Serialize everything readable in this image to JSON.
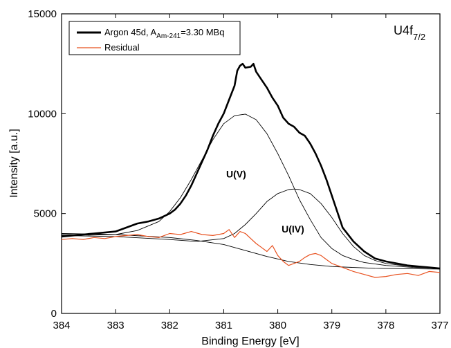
{
  "chart_data": {
    "type": "line",
    "title": "",
    "xlabel": "Binding Energy [eV]",
    "ylabel": "Intensity [a.u.]",
    "xlim": [
      384,
      377
    ],
    "x_reversed": true,
    "ylim": [
      0,
      15000
    ],
    "xticks": [
      "384",
      "383",
      "382",
      "381",
      "380",
      "379",
      "378",
      "377"
    ],
    "xtick_values": [
      384,
      383,
      382,
      381,
      380,
      379,
      378,
      377
    ],
    "yticks": [
      "0",
      "5000",
      "10000",
      "15000"
    ],
    "ytick_values": [
      0,
      5000,
      10000,
      15000
    ],
    "grid": false,
    "legend_placement": "top-left",
    "corner_label": {
      "main": "U4f",
      "sub": "7/2"
    },
    "legend": [
      {
        "key": "measured",
        "text_prefix": "Argon 45d, A",
        "text_sub": "Am-241",
        "text_suffix": "=3.30 MBq",
        "color": "#000000"
      },
      {
        "key": "residual",
        "text": "Residual",
        "color": "#e8501e"
      }
    ],
    "annotations": [
      {
        "text": "U(V)",
        "x": 380.77,
        "y": 6800
      },
      {
        "text": "U(IV)",
        "x": 379.72,
        "y": 4050
      }
    ],
    "series": [
      {
        "key": "measured",
        "style": "thick",
        "color": "#000000",
        "x": [
          384.0,
          383.8,
          383.6,
          383.4,
          383.2,
          383.0,
          382.8,
          382.6,
          382.4,
          382.2,
          382.0,
          381.9,
          381.8,
          381.7,
          381.6,
          381.5,
          381.4,
          381.3,
          381.2,
          381.1,
          381.0,
          380.9,
          380.8,
          380.75,
          380.7,
          380.65,
          380.6,
          380.5,
          380.45,
          380.4,
          380.3,
          380.2,
          380.1,
          380.0,
          379.9,
          379.8,
          379.7,
          379.6,
          379.5,
          379.4,
          379.3,
          379.2,
          379.1,
          379.0,
          378.9,
          378.8,
          378.6,
          378.4,
          378.2,
          378.0,
          377.8,
          377.6,
          377.4,
          377.2,
          377.0
        ],
        "y": [
          3850,
          3900,
          3950,
          4000,
          4050,
          4100,
          4300,
          4500,
          4600,
          4750,
          5000,
          5200,
          5500,
          5900,
          6400,
          7000,
          7600,
          8200,
          8900,
          9500,
          10000,
          10700,
          11400,
          12150,
          12400,
          12500,
          12300,
          12350,
          12500,
          12100,
          11700,
          11300,
          10800,
          10400,
          9800,
          9500,
          9350,
          9050,
          8900,
          8500,
          8000,
          7400,
          6700,
          5900,
          5100,
          4300,
          3600,
          3100,
          2750,
          2600,
          2500,
          2400,
          2350,
          2300,
          2250
        ]
      },
      {
        "key": "residual",
        "style": "thin",
        "color": "#e8501e",
        "x": [
          384.0,
          383.8,
          383.6,
          383.4,
          383.2,
          383.0,
          382.8,
          382.6,
          382.4,
          382.2,
          382.0,
          381.8,
          381.6,
          381.4,
          381.2,
          381.0,
          380.9,
          380.8,
          380.7,
          380.6,
          380.5,
          380.4,
          380.3,
          380.2,
          380.1,
          380.0,
          379.9,
          379.8,
          379.7,
          379.6,
          379.5,
          379.4,
          379.3,
          379.2,
          379.1,
          379.0,
          378.8,
          378.6,
          378.4,
          378.2,
          378.0,
          377.8,
          377.6,
          377.4,
          377.2,
          377.0
        ],
        "y": [
          3700,
          3750,
          3700,
          3800,
          3750,
          3850,
          3900,
          3950,
          3850,
          3800,
          4000,
          3950,
          4100,
          3950,
          3900,
          4000,
          4200,
          3800,
          4100,
          4000,
          3750,
          3500,
          3300,
          3100,
          3400,
          2900,
          2600,
          2400,
          2500,
          2600,
          2800,
          2950,
          3000,
          2900,
          2700,
          2500,
          2300,
          2100,
          1950,
          1800,
          1850,
          1950,
          2000,
          1900,
          2100,
          2050
        ]
      },
      {
        "key": "fit-u-v",
        "style": "fine",
        "color": "#000000",
        "x": [
          384.0,
          383.5,
          383.0,
          382.6,
          382.2,
          382.0,
          381.8,
          381.6,
          381.4,
          381.2,
          381.0,
          380.8,
          380.6,
          380.4,
          380.2,
          380.0,
          379.8,
          379.6,
          379.4,
          379.2,
          379.0,
          378.8,
          378.6,
          378.4,
          378.0,
          377.5,
          377.0
        ],
        "y": [
          3950,
          3920,
          3950,
          4150,
          4600,
          5100,
          5800,
          6700,
          7700,
          8700,
          9500,
          9900,
          9980,
          9700,
          9000,
          8000,
          6900,
          5700,
          4700,
          3800,
          3250,
          2900,
          2700,
          2550,
          2400,
          2300,
          2250
        ]
      },
      {
        "key": "fit-u-iv",
        "style": "fine",
        "color": "#000000",
        "x": [
          384.0,
          383.0,
          382.0,
          381.5,
          381.0,
          380.8,
          380.6,
          380.4,
          380.2,
          380.0,
          379.8,
          379.7,
          379.6,
          379.4,
          379.2,
          379.0,
          378.8,
          378.6,
          378.4,
          378.2,
          378.0,
          377.5,
          377.0
        ],
        "y": [
          3900,
          3850,
          3700,
          3600,
          3750,
          4000,
          4450,
          5000,
          5600,
          6000,
          6200,
          6230,
          6200,
          6000,
          5500,
          4800,
          4000,
          3350,
          2900,
          2650,
          2500,
          2330,
          2250
        ]
      },
      {
        "key": "background",
        "style": "fine",
        "color": "#000000",
        "x": [
          384.0,
          383.0,
          382.0,
          381.5,
          381.0,
          380.6,
          380.2,
          379.8,
          379.4,
          379.0,
          378.6,
          378.2,
          377.8,
          377.4,
          377.0
        ],
        "y": [
          4000,
          3950,
          3800,
          3650,
          3450,
          3150,
          2850,
          2600,
          2450,
          2350,
          2300,
          2260,
          2240,
          2230,
          2220
        ]
      }
    ]
  }
}
